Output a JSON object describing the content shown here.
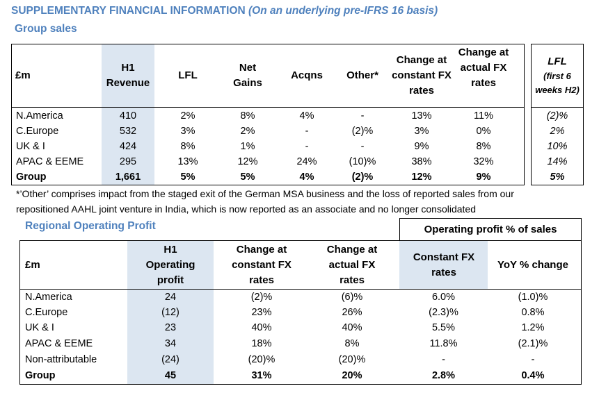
{
  "title": "SUPPLEMENTARY FINANCIAL INFORMATION",
  "title_note": "(On an underlying pre-IFRS 16 basis)",
  "group_sales": {
    "heading": "Group sales",
    "unit": "£m",
    "headers": [
      "H1 Revenue",
      "LFL",
      "Net Gains",
      "Acqns",
      "Other*",
      "Change at constant FX rates",
      "Change at actual FX rates"
    ],
    "lfl_header": "LFL",
    "lfl_sub": "(first 6 weeks H2)",
    "rows": [
      {
        "region": "N.America",
        "cells": [
          "410",
          "2%",
          "8%",
          "4%",
          "-",
          "13%",
          "11%"
        ],
        "lfl": "(2)%"
      },
      {
        "region": "C.Europe",
        "cells": [
          "532",
          "3%",
          "2%",
          "-",
          "(2)%",
          "3%",
          "0%"
        ],
        "lfl": "2%"
      },
      {
        "region": "UK & I",
        "cells": [
          "424",
          "8%",
          "1%",
          "-",
          "-",
          "9%",
          "8%"
        ],
        "lfl": "10%"
      },
      {
        "region": "APAC & EEME",
        "cells": [
          "295",
          "13%",
          "12%",
          "24%",
          "(10)%",
          "38%",
          "32%"
        ],
        "lfl": "14%"
      },
      {
        "region": "Group",
        "cells": [
          "1,661",
          "5%",
          "5%",
          "4%",
          "(2)%",
          "12%",
          "9%"
        ],
        "lfl": "5%"
      }
    ],
    "footnote_line1": "*’Other’ comprises impact from the staged exit of the German MSA business and the loss of reported sales from our",
    "footnote_line2": "repositioned AAHL joint venture in India, which is now reported as an associate and no longer consolidated"
  },
  "regional_profit": {
    "heading": "Regional Operating Profit",
    "group_header": "Operating profit % of sales",
    "unit": "£m",
    "headers": [
      "H1 Operating profit",
      "Change at constant FX rates",
      "Change at actual FX rates",
      "Constant FX rates",
      "YoY % change"
    ],
    "rows": [
      {
        "region": "N.America",
        "cells": [
          "24",
          "(2)%",
          "(6)%",
          "6.0%",
          "(1.0)%"
        ]
      },
      {
        "region": "C.Europe",
        "cells": [
          "(12)",
          "23%",
          "26%",
          "(2.3)%",
          "0.8%"
        ]
      },
      {
        "region": "UK & I",
        "cells": [
          "23",
          "40%",
          "40%",
          "5.5%",
          "1.2%"
        ]
      },
      {
        "region": "APAC & EEME",
        "cells": [
          "34",
          "18%",
          "8%",
          "11.8%",
          "(2.1)%"
        ]
      },
      {
        "region": "Non-attributable",
        "cells": [
          "(24)",
          "(20)%",
          "(20)%",
          "-",
          "-"
        ]
      },
      {
        "region": "Group",
        "cells": [
          "45",
          "31%",
          "20%",
          "2.8%",
          "0.4%"
        ]
      }
    ]
  }
}
